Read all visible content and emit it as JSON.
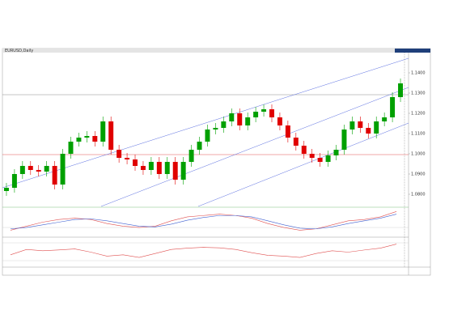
{
  "chart_data": [
    {
      "type": "candlestick",
      "title": "EURUSD,Daily",
      "categories": [
        null,
        null,
        null,
        null,
        null,
        null,
        null,
        null,
        null,
        null,
        null,
        null,
        null,
        null,
        null,
        null,
        null,
        null,
        null,
        null,
        null,
        null,
        null,
        null,
        null,
        null,
        null,
        null,
        null,
        null,
        null,
        null,
        null,
        null,
        null,
        null,
        null,
        null,
        null,
        null,
        null,
        null,
        null,
        null,
        null,
        null,
        null,
        null,
        null,
        null
      ],
      "open": [
        1.0816,
        1.0832,
        1.09,
        1.094,
        1.092,
        1.0912,
        1.094,
        1.0848,
        1.1,
        1.106,
        1.108,
        1.1088,
        1.106,
        1.116,
        1.102,
        1.098,
        1.0972,
        1.094,
        1.092,
        1.096,
        1.09,
        1.096,
        1.0872,
        1.096,
        1.102,
        1.106,
        1.112,
        1.1128,
        1.116,
        1.12,
        1.114,
        1.118,
        1.1208,
        1.122,
        1.118,
        1.114,
        1.108,
        1.104,
        1.1,
        1.098,
        1.096,
        1.0992,
        1.102,
        1.112,
        1.116,
        1.1128,
        1.11,
        1.116,
        1.118,
        1.128
      ],
      "high": [
        1.0856,
        1.0924,
        1.0964,
        1.0964,
        1.0944,
        1.0964,
        1.0964,
        1.1024,
        1.1084,
        1.1104,
        1.1112,
        1.1112,
        1.1184,
        1.1184,
        1.1044,
        1.1004,
        1.0996,
        1.0964,
        1.0984,
        1.0984,
        1.0984,
        1.0984,
        1.0984,
        1.1044,
        1.1084,
        1.1144,
        1.1152,
        1.1184,
        1.1224,
        1.1224,
        1.1204,
        1.1232,
        1.1244,
        1.1244,
        1.1204,
        1.1164,
        1.1104,
        1.1064,
        1.1024,
        1.1004,
        1.1016,
        1.1044,
        1.1144,
        1.1184,
        1.1184,
        1.1152,
        1.1184,
        1.1204,
        1.1304,
        1.1372
      ],
      "low": [
        1.0792,
        1.0808,
        1.0876,
        1.0896,
        1.0888,
        1.0888,
        1.0824,
        1.0824,
        1.0976,
        1.1036,
        1.1056,
        1.1036,
        1.1036,
        1.0996,
        1.0956,
        1.0948,
        1.0916,
        1.0896,
        1.0896,
        1.0876,
        1.0876,
        1.0848,
        1.0848,
        1.0936,
        1.0996,
        1.1036,
        1.1096,
        1.1104,
        1.1136,
        1.1116,
        1.1116,
        1.1156,
        1.1184,
        1.1156,
        1.1116,
        1.1056,
        1.1016,
        1.0976,
        1.0956,
        1.0936,
        1.0936,
        1.0968,
        1.0996,
        1.1096,
        1.1104,
        1.1076,
        1.1076,
        1.1136,
        1.1156,
        1.1256
      ],
      "close": [
        1.0832,
        1.09,
        1.094,
        1.092,
        1.0912,
        1.094,
        1.0848,
        1.1,
        1.106,
        1.108,
        1.1088,
        1.106,
        1.116,
        1.102,
        1.098,
        1.0972,
        1.094,
        1.092,
        1.096,
        1.09,
        1.096,
        1.0872,
        1.096,
        1.102,
        1.106,
        1.112,
        1.1128,
        1.116,
        1.12,
        1.114,
        1.118,
        1.1208,
        1.122,
        1.118,
        1.114,
        1.108,
        1.104,
        1.1,
        1.098,
        1.096,
        1.0992,
        1.102,
        1.112,
        1.116,
        1.1128,
        1.11,
        1.116,
        1.118,
        1.128,
        1.1348
      ],
      "up_color": "#00a000",
      "down_color": "#e00000",
      "ylim": [
        1.074,
        1.15
      ],
      "yticks": [
        {
          "value": 1.08,
          "label": "1.0800"
        },
        {
          "value": 1.09,
          "label": "1.0900"
        },
        {
          "value": 1.1,
          "label": "1.1000"
        },
        {
          "value": 1.11,
          "label": "1.1100"
        },
        {
          "value": 1.12,
          "label": "1.1200"
        },
        {
          "value": 1.13,
          "label": "1.1300"
        },
        {
          "value": 1.14,
          "label": "1.1400"
        }
      ]
    },
    {
      "type": "line",
      "categories": [
        null,
        null,
        null,
        null,
        null,
        null,
        null,
        null,
        null,
        null,
        null,
        null,
        null,
        null,
        null,
        null,
        null,
        null,
        null,
        null,
        null,
        null,
        null,
        null,
        null
      ],
      "series": [
        {
          "color": "#e05050",
          "values": [
            -0.6,
            -0.3,
            0,
            0.2,
            0.3,
            0.2,
            -0.1,
            -0.3,
            -0.4,
            -0.3,
            0.1,
            0.4,
            0.5,
            0.6,
            0.5,
            0.3,
            -0.1,
            -0.4,
            -0.6,
            -0.5,
            -0.2,
            0.1,
            0.2,
            0.4,
            0.8
          ]
        },
        {
          "color": "#4060d0",
          "values": [
            -0.5,
            -0.4,
            -0.2,
            0,
            0.2,
            0.25,
            0.1,
            -0.1,
            -0.3,
            -0.35,
            -0.15,
            0.15,
            0.35,
            0.5,
            0.5,
            0.4,
            0.1,
            -0.2,
            -0.45,
            -0.5,
            -0.35,
            -0.1,
            0.1,
            0.3,
            0.6
          ]
        }
      ],
      "ylim": [
        -1,
        1
      ]
    },
    {
      "type": "line",
      "categories": [
        null,
        null,
        null,
        null,
        null,
        null,
        null,
        null,
        null,
        null,
        null,
        null,
        null,
        null,
        null,
        null,
        null,
        null,
        null,
        null,
        null,
        null,
        null,
        null,
        null
      ],
      "series": [
        {
          "color": "#e05050",
          "values": [
            40,
            60,
            55,
            58,
            62,
            50,
            35,
            40,
            30,
            45,
            60,
            65,
            68,
            66,
            60,
            48,
            38,
            35,
            30,
            45,
            55,
            50,
            58,
            65,
            80
          ]
        }
      ],
      "ylim": [
        0,
        100
      ]
    }
  ]
}
